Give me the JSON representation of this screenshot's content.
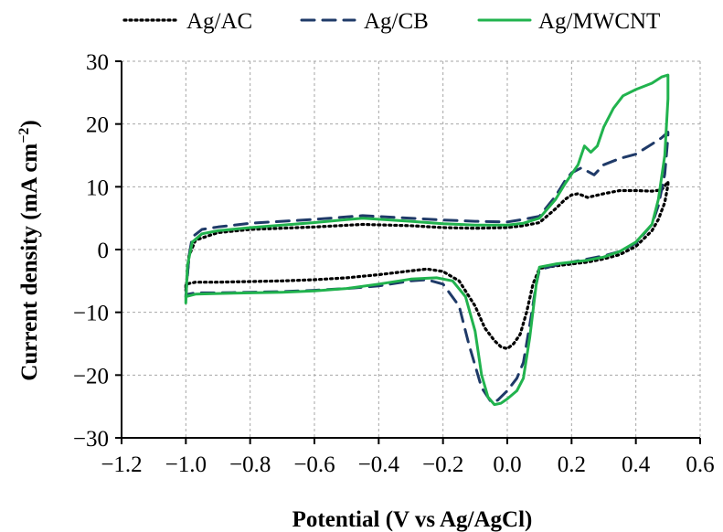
{
  "chart_data": {
    "type": "line",
    "xlabel": "Potential (V vs Ag/AgCl)",
    "ylabel": "Current density (mA cm",
    "ylabel_sup": "−2",
    "ylabel_end": ")",
    "xlim": [
      -1.2,
      0.6
    ],
    "ylim": [
      -30,
      30
    ],
    "x_ticks": [
      -1.2,
      -1.0,
      -0.8,
      -0.6,
      -0.4,
      -0.2,
      0.0,
      0.2,
      0.4,
      0.6
    ],
    "x_tick_labels": [
      "−1.2",
      "−1.0",
      "−0.8",
      "−0.6",
      "−0.4",
      "−0.2",
      "0.0",
      "0.2",
      "0.4",
      "0.6"
    ],
    "y_ticks": [
      -30,
      -20,
      -10,
      0,
      10,
      20,
      30
    ],
    "y_tick_labels": [
      "−30",
      "−20",
      "−10",
      "0",
      "10",
      "20",
      "30"
    ],
    "grid": true,
    "legend_position": "top",
    "series": [
      {
        "name": "Ag/AC",
        "color": "#000000",
        "style": "dotted",
        "x": [
          -1.0,
          -0.99,
          -0.97,
          -0.9,
          -0.8,
          -0.6,
          -0.45,
          -0.3,
          -0.2,
          -0.1,
          0.0,
          0.05,
          0.1,
          0.15,
          0.18,
          0.2,
          0.22,
          0.25,
          0.3,
          0.35,
          0.4,
          0.45,
          0.48,
          0.5,
          0.5,
          0.49,
          0.47,
          0.45,
          0.4,
          0.35,
          0.3,
          0.25,
          0.2,
          0.15,
          0.1,
          0.08,
          0.06,
          0.04,
          0.02,
          0.0,
          -0.02,
          -0.04,
          -0.07,
          -0.1,
          -0.15,
          -0.2,
          -0.25,
          -0.3,
          -0.4,
          -0.5,
          -0.6,
          -0.7,
          -0.8,
          -0.9,
          -0.97,
          -1.0,
          -1.0
        ],
        "y": [
          -6.5,
          -1.0,
          1.5,
          2.7,
          3.2,
          3.6,
          4.0,
          3.8,
          3.5,
          3.4,
          3.5,
          3.8,
          4.3,
          6.5,
          8.0,
          8.7,
          8.9,
          8.3,
          8.9,
          9.4,
          9.4,
          9.3,
          9.5,
          10.8,
          10.3,
          7.5,
          4.8,
          3.0,
          0.5,
          -0.8,
          -1.5,
          -2.0,
          -2.3,
          -2.6,
          -3.0,
          -5.5,
          -10.0,
          -13.5,
          -15.0,
          -15.8,
          -15.5,
          -14.5,
          -12.5,
          -9.0,
          -5.0,
          -3.5,
          -3.1,
          -3.4,
          -4.0,
          -4.5,
          -4.8,
          -5.0,
          -5.1,
          -5.2,
          -5.2,
          -5.5,
          -6.5
        ]
      },
      {
        "name": "Ag/CB",
        "color": "#1f3a68",
        "style": "dashed",
        "x": [
          -1.0,
          -0.99,
          -0.98,
          -0.95,
          -0.9,
          -0.8,
          -0.6,
          -0.45,
          -0.3,
          -0.2,
          -0.1,
          0.0,
          0.05,
          0.1,
          0.15,
          0.18,
          0.2,
          0.23,
          0.27,
          0.3,
          0.35,
          0.4,
          0.45,
          0.48,
          0.5,
          0.5,
          0.49,
          0.47,
          0.45,
          0.4,
          0.35,
          0.3,
          0.25,
          0.2,
          0.15,
          0.1,
          0.09,
          0.07,
          0.05,
          0.03,
          0.0,
          -0.03,
          -0.05,
          -0.08,
          -0.12,
          -0.15,
          -0.2,
          -0.25,
          -0.3,
          -0.4,
          -0.5,
          -0.6,
          -0.7,
          -0.8,
          -0.9,
          -0.97,
          -1.0,
          -1.0
        ],
        "y": [
          -7.5,
          -1.0,
          2.0,
          3.2,
          3.6,
          4.2,
          4.8,
          5.4,
          5.0,
          4.7,
          4.5,
          4.4,
          4.8,
          5.3,
          8.5,
          11.0,
          12.2,
          13.0,
          11.9,
          13.5,
          14.5,
          15.2,
          16.8,
          17.8,
          18.7,
          18.0,
          12.0,
          7.0,
          4.0,
          1.0,
          -0.3,
          -1.0,
          -1.5,
          -2.0,
          -2.5,
          -3.2,
          -5.5,
          -12.0,
          -18.0,
          -20.5,
          -22.5,
          -24.0,
          -24.3,
          -22.0,
          -15.0,
          -9.0,
          -5.5,
          -4.8,
          -5.0,
          -5.8,
          -6.2,
          -6.5,
          -6.7,
          -6.8,
          -6.9,
          -6.9,
          -7.2,
          -7.5
        ]
      },
      {
        "name": "Ag/MWCNT",
        "color": "#21b34e",
        "style": "solid",
        "x": [
          -1.0,
          -0.995,
          -0.98,
          -0.95,
          -0.9,
          -0.8,
          -0.6,
          -0.45,
          -0.3,
          -0.2,
          -0.1,
          0.0,
          0.05,
          0.1,
          0.15,
          0.18,
          0.2,
          0.22,
          0.24,
          0.26,
          0.28,
          0.3,
          0.33,
          0.36,
          0.4,
          0.45,
          0.48,
          0.5,
          0.5,
          0.49,
          0.47,
          0.45,
          0.4,
          0.35,
          0.3,
          0.25,
          0.2,
          0.15,
          0.1,
          0.09,
          0.07,
          0.05,
          0.03,
          0.0,
          -0.02,
          -0.04,
          -0.06,
          -0.08,
          -0.1,
          -0.13,
          -0.17,
          -0.22,
          -0.3,
          -0.4,
          -0.5,
          -0.6,
          -0.7,
          -0.8,
          -0.9,
          -0.97,
          -1.0,
          -1.0
        ],
        "y": [
          -8.5,
          -2.5,
          1.2,
          2.5,
          3.0,
          3.5,
          4.3,
          5.0,
          4.5,
          4.1,
          3.9,
          3.9,
          4.2,
          5.0,
          8.0,
          10.5,
          12.0,
          13.5,
          16.5,
          15.5,
          16.5,
          19.5,
          22.5,
          24.5,
          25.5,
          26.5,
          27.5,
          27.8,
          24.0,
          15.0,
          8.0,
          4.0,
          1.2,
          -0.3,
          -1.2,
          -1.7,
          -2.0,
          -2.3,
          -2.8,
          -5.5,
          -14.0,
          -20.5,
          -22.5,
          -23.8,
          -24.5,
          -24.7,
          -23.5,
          -20.0,
          -13.0,
          -7.5,
          -5.0,
          -4.5,
          -4.7,
          -5.5,
          -6.2,
          -6.6,
          -6.8,
          -6.9,
          -7.0,
          -7.1,
          -7.5,
          -8.5
        ]
      }
    ]
  }
}
